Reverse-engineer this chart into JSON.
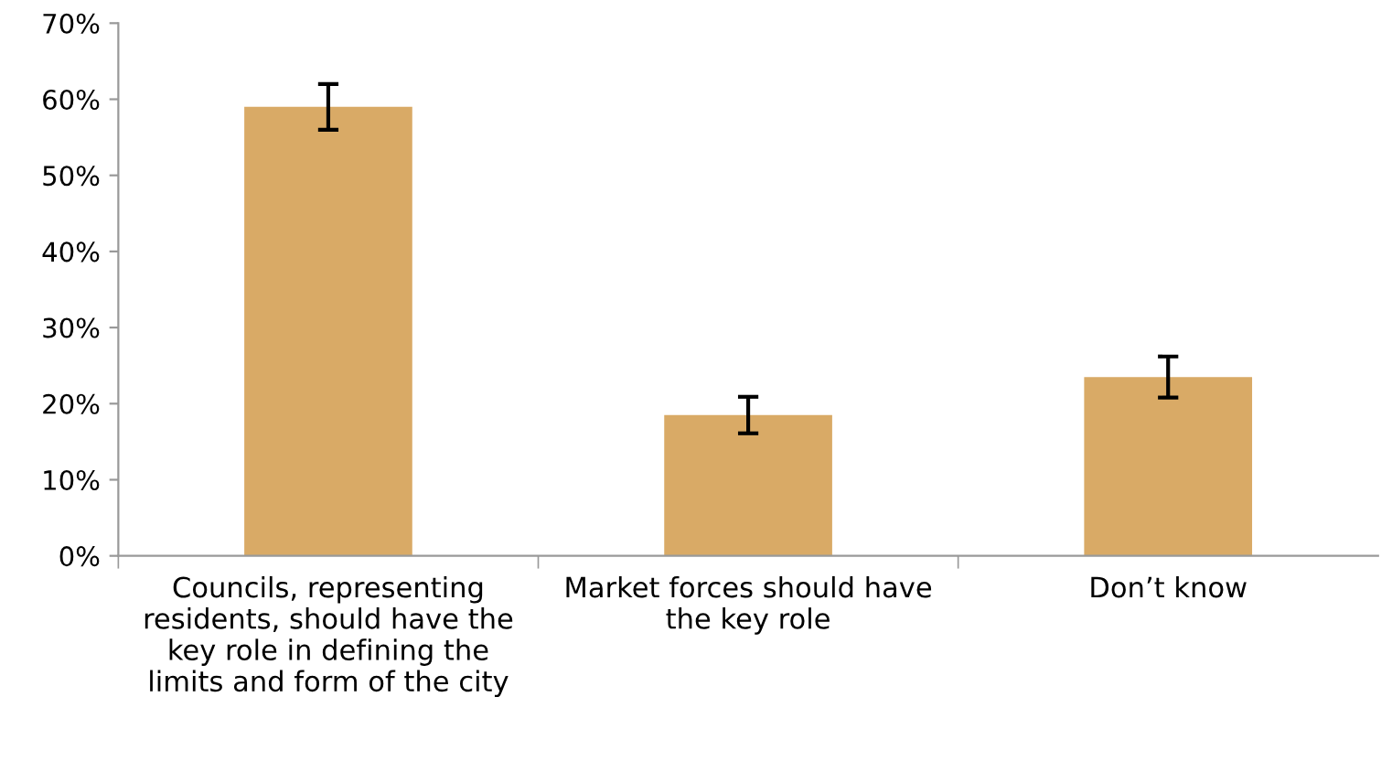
{
  "chart_data": {
    "type": "bar",
    "categories": [
      "Councils, representing\nresidents, should have the\nkey role in defining the\nlimits and form of the city",
      "Market forces should have\nthe key role",
      "Don’t know"
    ],
    "values": [
      59,
      18.5,
      23.5
    ],
    "errors": [
      3,
      2.4,
      2.7
    ],
    "color": "#d9aa66",
    "ylim": [
      0,
      70
    ],
    "yticks": [
      {
        "value": 0,
        "label": "0%"
      },
      {
        "value": 10,
        "label": "10%"
      },
      {
        "value": 20,
        "label": "20%"
      },
      {
        "value": 30,
        "label": "30%"
      },
      {
        "value": 40,
        "label": "40%"
      },
      {
        "value": 50,
        "label": "50%"
      },
      {
        "value": 60,
        "label": "60%"
      },
      {
        "value": 70,
        "label": "70%"
      }
    ],
    "grid": false
  }
}
